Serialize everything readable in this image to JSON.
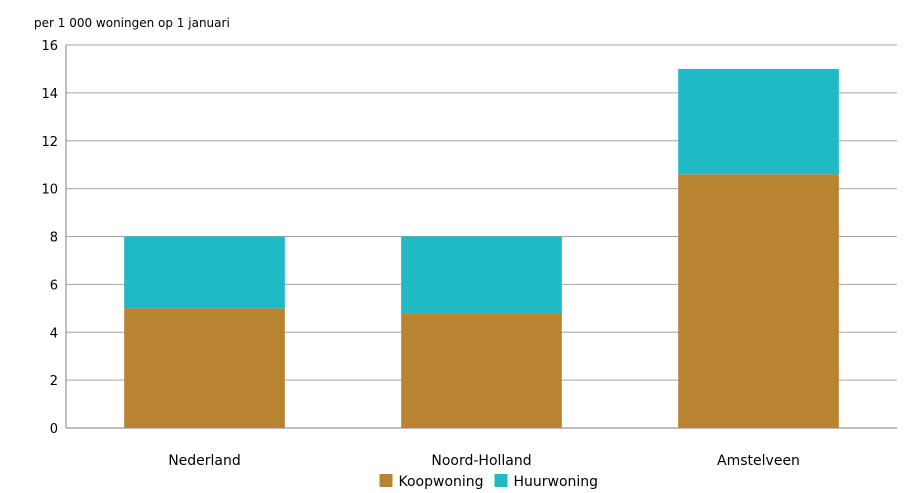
{
  "chart_data": {
    "type": "bar",
    "stacked": true,
    "title": "",
    "ylabel": "per 1 000 woningen op 1 januari",
    "xlabel": "",
    "categories": [
      "Nederland",
      "Noord-Holland",
      "Amstelveen"
    ],
    "series": [
      {
        "name": "Koopwoning",
        "values": [
          5.0,
          4.8,
          10.6
        ],
        "color": "#b88431"
      },
      {
        "name": "Huurwoning",
        "values": [
          3.0,
          3.2,
          4.4
        ],
        "color": "#1fbac4"
      }
    ],
    "ylim": [
      0,
      16
    ],
    "yticks": [
      0,
      2,
      4,
      6,
      8,
      10,
      12,
      14,
      16
    ],
    "grid": true,
    "legend": "bottom"
  }
}
